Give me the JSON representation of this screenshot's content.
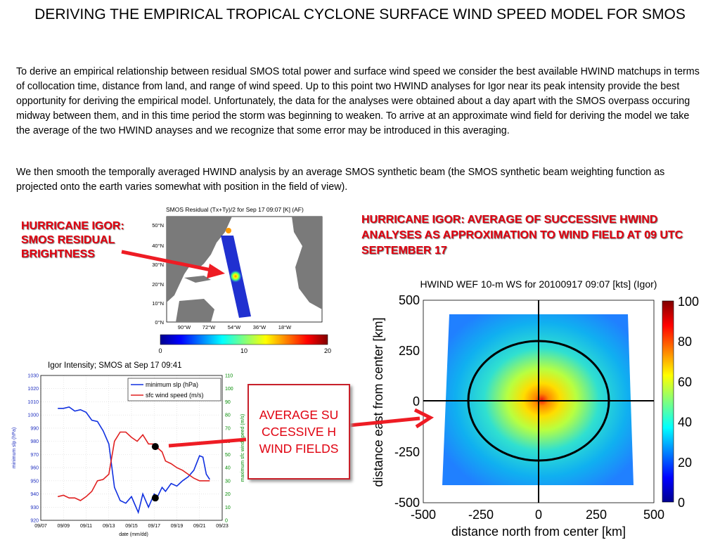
{
  "title": "DERIVING THE EMPIRICAL TROPICAL CYCLONE SURFACE WIND SPEED MODEL FOR SMOS",
  "paragraph1": "To derive an empirical relationship between residual SMOS total power and surface wind speed we consider the best available HWIND matchups in terms of collocation time, distance from land, and range of wind speed. Up to this point two HWIND analyses for Igor near its peak intensity provide the best opportunity for deriving the empirical model. Unfortunately, the data for the analyses were obtained about a day apart with the SMOS overpass occuring midway between them, and in this time period the storm was beginning to weaken. To arrive at an approximate wind field for deriving the model we take the average of the two HWIND anayses and we recognize that some error may be introduced in this averaging.",
  "paragraph2": "We then smooth the temporally averaged HWIND analysis by an average SMOS synthetic beam (the SMOS synthetic beam weighting function as projected onto the earth varies somewhat with position in the field of view).",
  "labels": {
    "smos_residual": "HURRICANE IGOR: SMOS RESIDUAL BRIGHTNESS",
    "hwind_average": "HURRICANE IGOR: AVERAGE OF SUCCESSIVE HWIND ANALYSES AS APPROXIMATION TO WIND FIELD AT 09 UTC SEPTEMBER 17",
    "box_text": "AVERAGE SUCCESSIVE HWIND FIELDS"
  },
  "colors": {
    "accent_red": "#e0000f",
    "slp_line": "#1030e0",
    "wind_line": "#e02020",
    "y2_axis": "#008a00"
  },
  "chart_data": [
    {
      "type": "heatmap",
      "title": "SMOS Residual (Tx+Ty)/2 for Sep 17 09:07 [K] (AF)",
      "y_ticks": [
        "50°N",
        "40°N",
        "30°N",
        "20°N",
        "10°N",
        "0°N"
      ],
      "x_ticks": [
        "90°W",
        "72°W",
        "54°W",
        "36°W",
        "18°W"
      ],
      "colorbar": {
        "ticks": [
          "0",
          "10",
          "20"
        ],
        "range": [
          0,
          20
        ]
      }
    },
    {
      "type": "line",
      "title": "Igor Intensity; SMOS at Sep 17 09:41",
      "xlabel": "date (mm/dd)",
      "ylabel": "minimum slp (hPa)",
      "y2label": "maximum sfc wind speed (m/s)",
      "x_ticks": [
        "09/07",
        "09/09",
        "09/11",
        "09/13",
        "09/15",
        "09/17",
        "09/19",
        "09/21",
        "09/23"
      ],
      "xlim": [
        7,
        23
      ],
      "ylim": [
        920,
        1030
      ],
      "y_ticks": [
        920,
        930,
        940,
        950,
        960,
        970,
        980,
        990,
        1000,
        1010,
        1020,
        1030
      ],
      "y2lim": [
        0,
        110
      ],
      "y2_ticks": [
        0,
        10,
        20,
        30,
        40,
        50,
        60,
        70,
        80,
        90,
        100,
        110
      ],
      "legend": "top-right",
      "series": [
        {
          "name": "minimum slp (hPa)",
          "axis": "left",
          "x": [
            8.5,
            9,
            9.5,
            10,
            10.5,
            11,
            11.5,
            12,
            12.5,
            13,
            13.5,
            14,
            14.5,
            15,
            15.3,
            15.6,
            16,
            16.5,
            17,
            17.3,
            17.7,
            18,
            18.5,
            19,
            19.5,
            20,
            20.5,
            21,
            21.3,
            21.6,
            21.9
          ],
          "y": [
            1005,
            1005,
            1006,
            1003,
            1004,
            1002,
            996,
            995,
            988,
            978,
            945,
            935,
            933,
            938,
            932,
            926,
            940,
            930,
            940,
            938,
            945,
            942,
            948,
            946,
            950,
            953,
            958,
            969,
            968,
            955,
            951
          ]
        },
        {
          "name": "sfc wind speed (m/s)",
          "axis": "right",
          "x": [
            8.5,
            9,
            9.5,
            10,
            10.5,
            11,
            11.5,
            12,
            12.5,
            13,
            13.5,
            14,
            14.5,
            15,
            15.5,
            16,
            16.5,
            17,
            17.3,
            17.7,
            18,
            18.5,
            19,
            19.5,
            20,
            20.5,
            21,
            21.5,
            21.9
          ],
          "y": [
            18,
            19,
            17,
            17,
            15,
            18,
            22,
            30,
            31,
            35,
            60,
            67,
            67,
            63,
            60,
            65,
            58,
            58,
            55,
            52,
            45,
            43,
            40,
            38,
            35,
            32,
            30,
            30,
            30
          ]
        }
      ],
      "markers": [
        {
          "axis": "right",
          "x": 17.1,
          "y": 56
        },
        {
          "axis": "left",
          "x": 17.1,
          "y": 937
        }
      ]
    },
    {
      "type": "heatmap",
      "title": "HWIND WEF 10-m WS for 20100917 09:07 [kts] (Igor)",
      "xlabel": "distance north from center [km]",
      "ylabel": "distance east from center [km]",
      "x_ticks": [
        -500,
        -250,
        0,
        250,
        500
      ],
      "y_ticks": [
        500,
        250,
        0,
        -250,
        -500
      ],
      "colorbar": {
        "ticks": [
          100,
          80,
          60,
          40,
          20,
          0
        ],
        "range": [
          0,
          100
        ]
      },
      "ring_radius_km": 300
    }
  ]
}
